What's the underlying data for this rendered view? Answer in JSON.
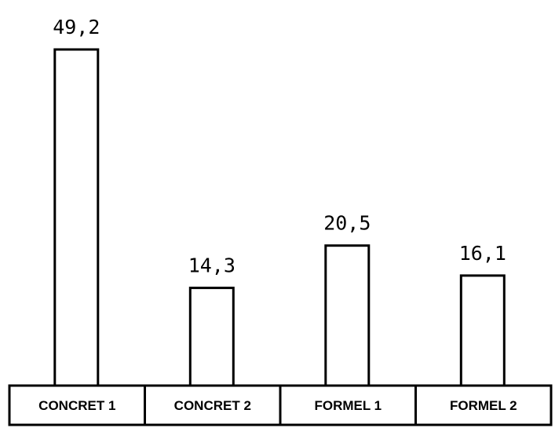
{
  "chart_data": {
    "type": "bar",
    "categories": [
      "CONCRET 1",
      "CONCRET 2",
      "FORMEL 1",
      "FORMEL 2"
    ],
    "values": [
      49.2,
      14.3,
      20.5,
      16.1
    ],
    "value_labels": [
      "49,2",
      "14,3",
      "20,5",
      "16,1"
    ],
    "title": "",
    "xlabel": "",
    "ylabel": "",
    "ylim": [
      0,
      49.2
    ],
    "grid": false,
    "legend": "none",
    "bar_fill": "#ffffff",
    "bar_stroke": "#000000"
  }
}
